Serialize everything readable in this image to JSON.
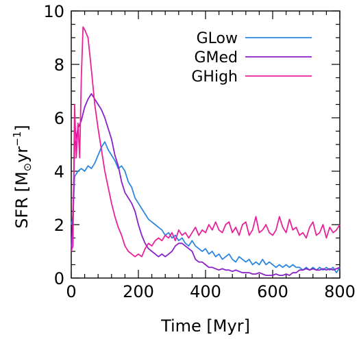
{
  "chart_data": {
    "type": "line",
    "title": "",
    "xlabel": "Time [Myr]",
    "ylabel_main": "SFR [M",
    "ylabel_sub": "⊙",
    "ylabel_rest": "yr",
    "ylabel_exp": "−1",
    "ylabel_close": "]",
    "xlim": [
      0,
      800
    ],
    "ylim": [
      0,
      10
    ],
    "xticks": [
      0,
      200,
      400,
      600,
      800
    ],
    "xtick_labels": [
      "0",
      "200",
      "400",
      "600",
      "800"
    ],
    "yticks": [
      0,
      2,
      4,
      6,
      8,
      10
    ],
    "ytick_labels": [
      "0",
      "2",
      "4",
      "6",
      "8",
      "10"
    ],
    "grid": false,
    "legend_position": "top-right",
    "series": [
      {
        "name": "GLow",
        "color": "#2b86e0",
        "x": [
          0,
          5,
          10,
          20,
          30,
          40,
          50,
          60,
          70,
          80,
          90,
          100,
          110,
          120,
          130,
          140,
          150,
          160,
          170,
          180,
          190,
          200,
          210,
          220,
          230,
          240,
          250,
          260,
          270,
          280,
          290,
          300,
          310,
          320,
          330,
          340,
          350,
          360,
          370,
          380,
          390,
          400,
          410,
          420,
          430,
          440,
          450,
          460,
          470,
          480,
          490,
          500,
          510,
          520,
          530,
          540,
          550,
          560,
          570,
          580,
          590,
          600,
          610,
          620,
          630,
          640,
          650,
          660,
          670,
          680,
          690,
          700,
          710,
          720,
          730,
          740,
          750,
          760,
          770,
          780,
          790,
          800
        ],
        "y": [
          2.0,
          2.3,
          3.8,
          4.0,
          4.1,
          4.0,
          4.2,
          4.1,
          4.3,
          4.6,
          4.9,
          5.1,
          4.8,
          4.6,
          4.4,
          4.1,
          4.2,
          4.0,
          3.6,
          3.4,
          3.0,
          2.8,
          2.6,
          2.4,
          2.2,
          2.1,
          2.0,
          1.9,
          1.8,
          1.6,
          1.7,
          1.5,
          1.6,
          1.4,
          1.5,
          1.3,
          1.2,
          1.4,
          1.2,
          1.1,
          1.0,
          1.1,
          0.9,
          1.0,
          0.8,
          0.9,
          0.7,
          0.8,
          0.9,
          0.7,
          0.6,
          0.8,
          0.7,
          0.6,
          0.7,
          0.5,
          0.6,
          0.5,
          0.7,
          0.5,
          0.6,
          0.5,
          0.4,
          0.5,
          0.4,
          0.5,
          0.4,
          0.5,
          0.4,
          0.4,
          0.3,
          0.4,
          0.3,
          0.4,
          0.3,
          0.4,
          0.3,
          0.4,
          0.3,
          0.4,
          0.2,
          0.4
        ]
      },
      {
        "name": "GMed",
        "color": "#8a1ec8",
        "x": [
          0,
          5,
          10,
          20,
          30,
          40,
          50,
          60,
          70,
          80,
          90,
          100,
          110,
          120,
          130,
          140,
          150,
          160,
          170,
          180,
          190,
          200,
          210,
          220,
          230,
          240,
          250,
          260,
          270,
          280,
          290,
          300,
          310,
          320,
          330,
          340,
          350,
          360,
          370,
          380,
          390,
          400,
          410,
          420,
          430,
          440,
          450,
          460,
          470,
          480,
          490,
          500,
          510,
          520,
          530,
          540,
          550,
          560,
          570,
          580,
          590,
          600,
          610,
          620,
          630,
          640,
          650,
          660,
          670,
          680,
          690,
          700,
          710,
          720,
          730,
          740,
          750,
          760,
          770,
          780,
          790,
          800
        ],
        "y": [
          1.0,
          2.5,
          5.0,
          5.6,
          5.9,
          6.4,
          6.7,
          6.9,
          6.7,
          6.5,
          6.3,
          6.0,
          5.6,
          5.2,
          4.6,
          4.2,
          3.6,
          3.2,
          3.0,
          2.8,
          2.5,
          2.0,
          1.6,
          1.3,
          1.1,
          1.0,
          0.9,
          0.8,
          0.9,
          0.8,
          0.9,
          1.0,
          1.2,
          1.3,
          1.3,
          1.2,
          1.1,
          1.0,
          0.7,
          0.6,
          0.6,
          0.5,
          0.4,
          0.4,
          0.35,
          0.3,
          0.35,
          0.3,
          0.3,
          0.25,
          0.3,
          0.25,
          0.2,
          0.2,
          0.2,
          0.15,
          0.15,
          0.2,
          0.15,
          0.1,
          0.1,
          0.1,
          0.15,
          0.1,
          0.1,
          0.15,
          0.1,
          0.2,
          0.2,
          0.3,
          0.3,
          0.35,
          0.3,
          0.35,
          0.3,
          0.3,
          0.35,
          0.3,
          0.35,
          0.3,
          0.35,
          0.4
        ]
      },
      {
        "name": "GHigh",
        "color": "#e8219a",
        "x": [
          0,
          5,
          10,
          15,
          20,
          25,
          30,
          35,
          40,
          50,
          60,
          70,
          80,
          90,
          100,
          110,
          120,
          130,
          140,
          150,
          160,
          170,
          180,
          190,
          200,
          210,
          220,
          230,
          240,
          250,
          260,
          270,
          280,
          290,
          300,
          310,
          320,
          330,
          340,
          350,
          360,
          370,
          380,
          390,
          400,
          410,
          420,
          430,
          440,
          450,
          460,
          470,
          480,
          490,
          500,
          510,
          520,
          530,
          540,
          550,
          560,
          570,
          580,
          590,
          600,
          610,
          620,
          630,
          640,
          650,
          660,
          670,
          680,
          690,
          700,
          710,
          720,
          730,
          740,
          750,
          760,
          770,
          780,
          790,
          800
        ],
        "y": [
          1.0,
          1.2,
          6.5,
          4.5,
          5.8,
          4.5,
          7.5,
          9.4,
          9.3,
          9.0,
          7.8,
          6.5,
          5.6,
          4.8,
          4.0,
          3.4,
          2.8,
          2.3,
          1.9,
          1.6,
          1.2,
          1.0,
          0.9,
          0.8,
          0.9,
          0.8,
          1.1,
          1.3,
          1.2,
          1.4,
          1.5,
          1.4,
          1.6,
          1.5,
          1.7,
          1.4,
          1.8,
          1.6,
          1.7,
          1.5,
          1.7,
          1.9,
          1.6,
          1.8,
          1.7,
          2.0,
          1.8,
          2.1,
          1.8,
          1.7,
          2.0,
          2.1,
          1.7,
          1.9,
          1.6,
          2.0,
          2.1,
          1.6,
          1.8,
          2.3,
          1.7,
          1.8,
          2.0,
          1.7,
          1.6,
          1.8,
          2.3,
          1.9,
          1.7,
          2.2,
          1.8,
          1.9,
          1.6,
          1.7,
          1.5,
          1.9,
          2.1,
          1.6,
          1.7,
          2.0,
          1.5,
          1.9,
          1.7,
          1.8,
          2.0
        ]
      }
    ]
  }
}
